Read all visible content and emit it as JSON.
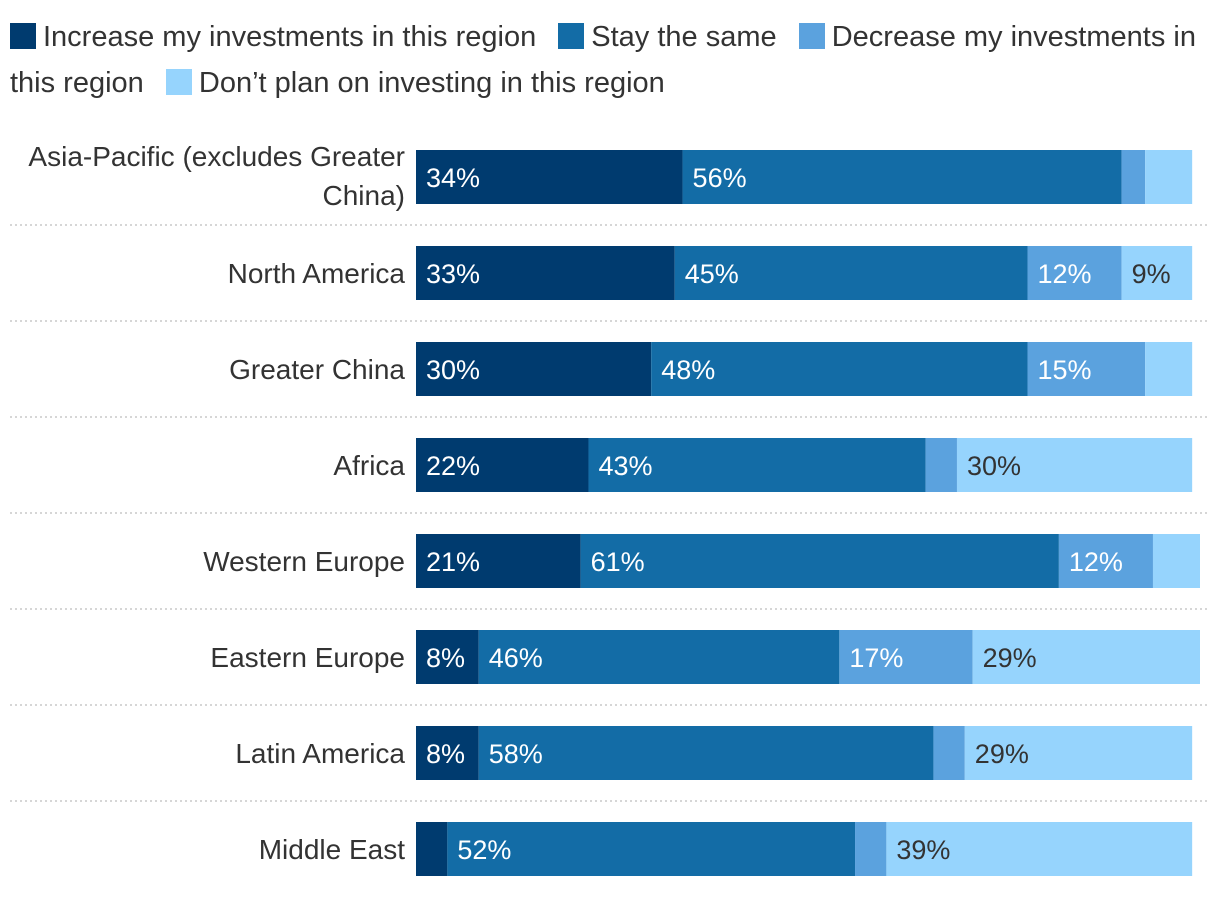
{
  "chart_data": {
    "type": "bar",
    "orientation": "horizontal",
    "stacked": true,
    "xlim": [
      0,
      100
    ],
    "grid": false,
    "legend_position": "top",
    "categories": [
      "Asia-Pacific (excludes Greater China)",
      "North America",
      "Greater China",
      "Africa",
      "Western Europe",
      "Eastern Europe",
      "Latin America",
      "Middle East"
    ],
    "series": [
      {
        "name": "Increase my investments in this region",
        "color": "#003b6f",
        "label_color": "#ffffff",
        "values": [
          34,
          33,
          30,
          22,
          21,
          8,
          8,
          4
        ],
        "labels": [
          "34%",
          "33%",
          "30%",
          "22%",
          "21%",
          "8%",
          "8%",
          ""
        ]
      },
      {
        "name": "Stay the same",
        "color": "#136ca6",
        "label_color": "#ffffff",
        "values": [
          56,
          45,
          48,
          43,
          61,
          46,
          58,
          52
        ],
        "labels": [
          "56%",
          "45%",
          "48%",
          "43%",
          "61%",
          "46%",
          "58%",
          "52%"
        ]
      },
      {
        "name": "Decrease my investments in this region",
        "color": "#5ba2de",
        "label_color": "#ffffff",
        "values": [
          3,
          12,
          15,
          4,
          12,
          17,
          4,
          4
        ],
        "labels": [
          "",
          "12%",
          "15%",
          "",
          "12%",
          "17%",
          "",
          ""
        ]
      },
      {
        "name": "Don’t plan on investing in this region",
        "color": "#96d4fd",
        "label_color": "#333333",
        "values": [
          6,
          9,
          6,
          30,
          6,
          29,
          29,
          39
        ],
        "labels": [
          "",
          "9%",
          "",
          "30%",
          "",
          "29%",
          "29%",
          "39%"
        ]
      }
    ]
  }
}
